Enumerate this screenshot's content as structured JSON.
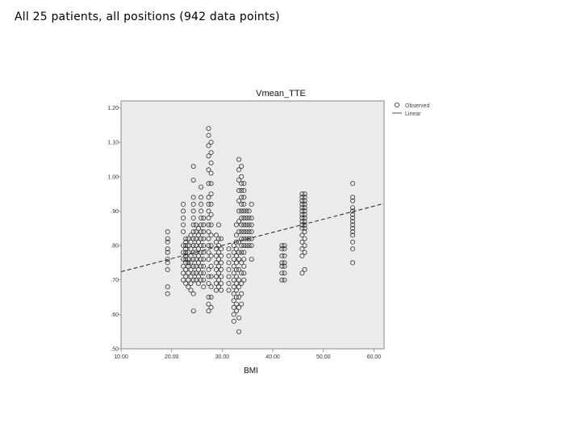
{
  "slide": {
    "title": "All 25 patients, all positions (942 data points)"
  },
  "colors": {
    "plot_bg": "#ebebeb",
    "frame": "#8a8a8a",
    "marker": "#333333",
    "fit_line": "#222222"
  },
  "chart_data": {
    "type": "scatter",
    "title": "Vmean_TTE",
    "xlabel": "BMI",
    "ylabel": "",
    "xlim": [
      10,
      62
    ],
    "ylim": [
      0.5,
      1.22
    ],
    "x_ticks": [
      10,
      20,
      30,
      40,
      50,
      60
    ],
    "x_tick_labels": [
      "10.00",
      "20.00",
      "30.00",
      "40.00",
      "50.00",
      "60.00"
    ],
    "y_ticks": [
      0.5,
      0.6,
      0.7,
      0.8,
      0.9,
      1.0,
      1.1,
      1.2
    ],
    "y_tick_labels": [
      ".50",
      ".60",
      ".70",
      ".80",
      ".90",
      "1.00",
      "1.10",
      "1.20"
    ],
    "grid": false,
    "legend_position": "top-right-outside",
    "legend": [
      "Observed",
      "Linear"
    ],
    "fit_line": {
      "name": "Linear",
      "style": "dashed",
      "points": [
        [
          10,
          0.724
        ],
        [
          62,
          0.922
        ]
      ]
    },
    "observed": [
      [
        19.2,
        [
          0.66,
          0.68,
          0.73,
          0.75,
          0.76,
          0.78,
          0.79,
          0.81,
          0.82,
          0.84
        ]
      ],
      [
        22.3,
        [
          0.7,
          0.72,
          0.74,
          0.76,
          0.78,
          0.8,
          0.84,
          0.86,
          0.88,
          0.9,
          0.92
        ]
      ],
      [
        22.8,
        [
          0.69,
          0.71,
          0.73,
          0.75,
          0.76,
          0.77,
          0.78,
          0.79,
          0.8,
          0.81,
          0.82
        ]
      ],
      [
        23.3,
        [
          0.68,
          0.7,
          0.72,
          0.74,
          0.75,
          0.76,
          0.78,
          0.8,
          0.82
        ]
      ],
      [
        23.8,
        [
          0.67,
          0.69,
          0.71,
          0.73,
          0.75,
          0.77,
          0.79,
          0.81,
          0.83
        ]
      ],
      [
        24.3,
        [
          0.61,
          0.66,
          0.7,
          0.72,
          0.74,
          0.76,
          0.78,
          0.8,
          0.82,
          0.84,
          0.86,
          0.88,
          0.9,
          0.92,
          0.94,
          0.99,
          1.03
        ]
      ],
      [
        24.8,
        [
          0.7,
          0.72,
          0.74,
          0.76,
          0.78,
          0.8,
          0.82,
          0.84,
          0.86
        ]
      ],
      [
        25.3,
        [
          0.69,
          0.71,
          0.73,
          0.75,
          0.77,
          0.79,
          0.81,
          0.83,
          0.85
        ]
      ],
      [
        25.8,
        [
          0.7,
          0.72,
          0.74,
          0.76,
          0.78,
          0.8,
          0.82,
          0.84,
          0.86,
          0.88,
          0.9,
          0.92,
          0.94,
          0.97
        ]
      ],
      [
        26.3,
        [
          0.68,
          0.7,
          0.72,
          0.74,
          0.76,
          0.78,
          0.8,
          0.82,
          0.84,
          0.86,
          0.88
        ]
      ],
      [
        27.3,
        [
          0.61,
          0.63,
          0.65,
          0.69,
          0.71,
          0.73,
          0.76,
          0.78,
          0.8,
          0.82,
          0.84,
          0.86,
          0.88,
          0.9,
          0.92,
          0.94,
          0.98,
          1.02,
          1.06,
          1.09,
          1.12,
          1.14
        ]
      ],
      [
        27.8,
        [
          0.62,
          0.65,
          0.68,
          0.71,
          0.74,
          0.77,
          0.8,
          0.83,
          0.86,
          0.89,
          0.92,
          0.95,
          0.98,
          1.01,
          1.04,
          1.07,
          1.1
        ]
      ],
      [
        28.8,
        [
          0.67,
          0.69,
          0.71,
          0.73,
          0.75,
          0.77,
          0.79,
          0.81,
          0.83
        ]
      ],
      [
        29.3,
        [
          0.68,
          0.7,
          0.72,
          0.74,
          0.76,
          0.78,
          0.8,
          0.82,
          0.86
        ]
      ],
      [
        29.8,
        [
          0.67,
          0.69,
          0.71,
          0.73,
          0.75,
          0.77,
          0.79,
          0.82
        ]
      ],
      [
        31.3,
        [
          0.67,
          0.69,
          0.71,
          0.73,
          0.75,
          0.77,
          0.79
        ]
      ],
      [
        32.3,
        [
          0.58,
          0.6,
          0.62,
          0.64,
          0.66,
          0.68,
          0.7,
          0.72,
          0.74,
          0.76,
          0.78,
          0.8
        ]
      ],
      [
        32.8,
        [
          0.61,
          0.63,
          0.65,
          0.67,
          0.69,
          0.71,
          0.73,
          0.75,
          0.77,
          0.79,
          0.81,
          0.83,
          0.86
        ]
      ],
      [
        33.3,
        [
          0.55,
          0.59,
          0.62,
          0.65,
          0.68,
          0.7,
          0.73,
          0.76,
          0.78,
          0.81,
          0.84,
          0.87,
          0.9,
          0.93,
          0.96,
          0.99,
          1.02,
          1.05
        ]
      ],
      [
        33.8,
        [
          0.63,
          0.66,
          0.69,
          0.72,
          0.75,
          0.78,
          0.8,
          0.82,
          0.84,
          0.86,
          0.88,
          0.9,
          0.92,
          0.94,
          0.96,
          0.98,
          1.0,
          1.03
        ]
      ],
      [
        34.3,
        [
          0.7,
          0.72,
          0.74,
          0.76,
          0.78,
          0.8,
          0.82,
          0.84,
          0.86,
          0.88,
          0.9,
          0.92,
          0.94,
          0.96,
          0.98
        ]
      ],
      [
        34.8,
        [
          0.8,
          0.82,
          0.84,
          0.86,
          0.88,
          0.9
        ]
      ],
      [
        35.3,
        [
          0.8,
          0.82,
          0.84,
          0.86,
          0.88,
          0.9
        ]
      ],
      [
        35.8,
        [
          0.76,
          0.8,
          0.82,
          0.84,
          0.86,
          0.88,
          0.92
        ]
      ],
      [
        41.8,
        [
          0.7,
          0.72,
          0.74,
          0.75,
          0.77,
          0.79,
          0.8
        ]
      ],
      [
        42.3,
        [
          0.7,
          0.72,
          0.74,
          0.75,
          0.77,
          0.79,
          0.8
        ]
      ],
      [
        45.8,
        [
          0.72,
          0.77,
          0.79,
          0.81,
          0.83,
          0.85,
          0.86,
          0.87,
          0.88,
          0.89,
          0.9,
          0.91,
          0.92,
          0.93,
          0.94,
          0.95
        ]
      ],
      [
        46.3,
        [
          0.73,
          0.78,
          0.8,
          0.82,
          0.84,
          0.85,
          0.86,
          0.87,
          0.88,
          0.89,
          0.9,
          0.91,
          0.92,
          0.93,
          0.94,
          0.95
        ]
      ],
      [
        55.8,
        [
          0.75,
          0.79,
          0.81,
          0.83,
          0.84,
          0.85,
          0.86,
          0.87,
          0.88,
          0.89,
          0.9,
          0.91,
          0.93,
          0.94,
          0.98
        ]
      ]
    ]
  }
}
